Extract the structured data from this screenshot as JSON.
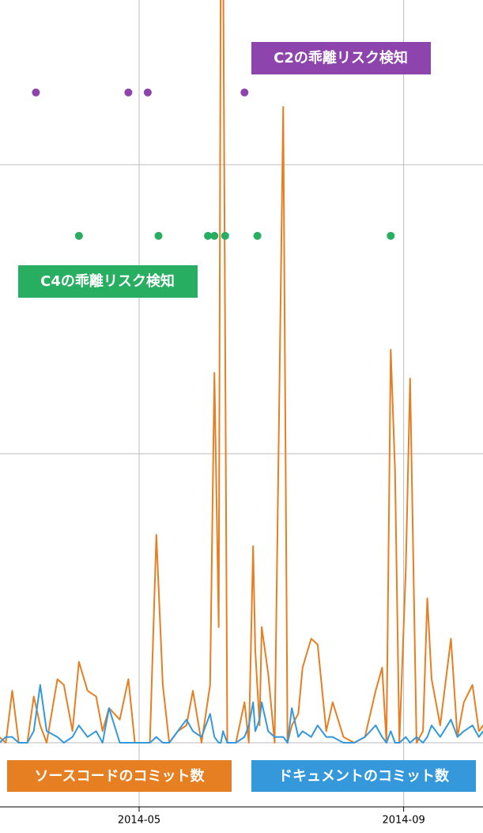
{
  "chart_data": {
    "type": "line",
    "x": [
      -65,
      -62,
      -59,
      -56,
      -52,
      -49,
      -46,
      -43,
      -38,
      -35,
      -31,
      -28,
      -24,
      -20,
      -17,
      -14,
      -9,
      -5,
      -2,
      2,
      5,
      8,
      11,
      14,
      18,
      22,
      25,
      29,
      33,
      35,
      37,
      38,
      39,
      41,
      45,
      49,
      51,
      53,
      54,
      56,
      57,
      60,
      63,
      67,
      69,
      71,
      74,
      76,
      80,
      83,
      87,
      90,
      95,
      100,
      105,
      110,
      113,
      115,
      117,
      119,
      121,
      124,
      126,
      129,
      132,
      134,
      136,
      140,
      145,
      148,
      151,
      155,
      158,
      160
    ],
    "series": [
      {
        "name": "ソースコードのコミット数",
        "color": "#e67e22",
        "values": [
          1,
          0,
          9,
          0,
          0,
          8,
          3,
          0,
          11,
          10,
          2,
          14,
          9,
          8,
          2,
          6,
          4,
          11,
          0,
          0,
          0,
          36,
          10,
          0,
          2,
          3,
          9,
          0,
          10,
          64,
          20,
          140,
          140,
          0,
          0,
          7,
          0,
          34,
          16,
          3,
          20,
          12,
          0,
          110,
          0,
          3,
          5,
          13,
          18,
          17,
          2,
          7,
          1,
          0,
          1,
          9,
          13,
          0,
          68,
          47,
          0,
          30,
          63,
          0,
          2,
          25,
          11,
          3,
          18,
          1,
          7,
          10,
          2,
          3
        ]
      },
      {
        "name": "ドキュメントのコミット数",
        "color": "#3498db",
        "values": [
          0,
          1,
          1,
          0,
          0,
          2,
          10,
          2,
          1,
          0,
          1,
          3,
          1,
          2,
          0,
          6,
          0,
          0,
          0,
          0,
          0,
          1,
          0,
          0,
          2,
          4,
          2,
          1,
          5,
          1,
          0,
          0,
          2,
          0,
          0,
          1,
          3,
          7,
          2,
          4,
          7,
          2,
          1,
          1,
          0,
          6,
          1,
          2,
          1,
          3,
          1,
          1,
          0,
          0,
          1,
          3,
          1,
          0,
          2,
          0,
          0,
          1,
          0,
          1,
          0,
          1,
          3,
          1,
          4,
          1,
          2,
          3,
          1,
          2
        ]
      },
      {
        "name": "C2の乖離リスク検知",
        "type": "scatter",
        "color": "#8e44ad",
        "x": [
          -48,
          -5,
          4,
          49
        ],
        "values": [
          112.5,
          112.5,
          112.5,
          112.5
        ]
      },
      {
        "name": "C4の乖離リスク検知",
        "type": "scatter",
        "color": "#27ae60",
        "x": [
          -28,
          9,
          32,
          35,
          40,
          55,
          117
        ],
        "values": [
          87.7,
          87.7,
          87.7,
          87.7,
          87.7,
          87.7,
          87.7
        ]
      }
    ],
    "xlim": [
      -64.7,
      159.9
    ],
    "xticks": [
      {
        "value": 0,
        "label": "2014-05"
      },
      {
        "value": 123,
        "label": "2014-09"
      }
    ],
    "ylim": [
      0,
      128.5
    ],
    "yticks": [
      0,
      50,
      100
    ],
    "grid": true
  }
}
